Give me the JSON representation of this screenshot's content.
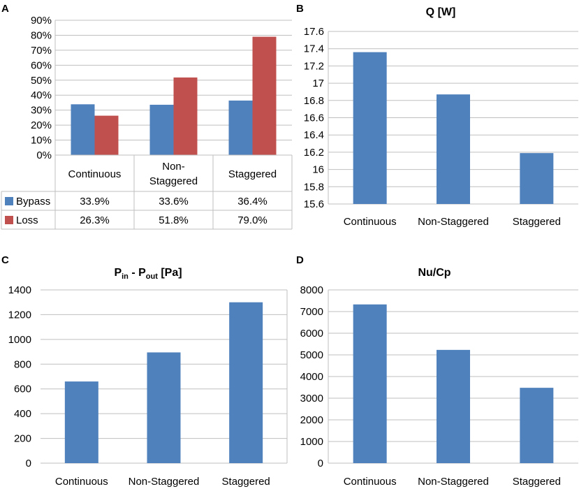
{
  "chart_data": [
    {
      "panel": "A",
      "type": "bar",
      "title": "",
      "categories": [
        "Continuous",
        "Non-\nStaggered",
        "Staggered"
      ],
      "series": [
        {
          "name": "Bypass",
          "values": [
            33.9,
            33.6,
            36.4
          ],
          "labels": [
            "33.9%",
            "33.6%",
            "36.4%"
          ],
          "color": "#4F81BD"
        },
        {
          "name": "Loss",
          "values": [
            26.3,
            51.8,
            79.0
          ],
          "labels": [
            "26.3%",
            "51.8%",
            "79.0%"
          ],
          "color": "#C0504D"
        }
      ],
      "yticks": [
        "0%",
        "10%",
        "20%",
        "30%",
        "40%",
        "50%",
        "60%",
        "70%",
        "80%",
        "90%"
      ],
      "ylim": [
        0,
        90
      ],
      "data_table": true
    },
    {
      "panel": "B",
      "type": "bar",
      "title": "Q [W]",
      "categories": [
        "Continuous",
        "Non-Staggered",
        "Staggered"
      ],
      "values": [
        17.36,
        16.87,
        16.19
      ],
      "yticks": [
        "15.6",
        "15.8",
        "16",
        "16.2",
        "16.4",
        "16.6",
        "16.8",
        "17",
        "17.2",
        "17.4",
        "17.6"
      ],
      "ylim": [
        15.6,
        17.6
      ],
      "yaxis_side": "left",
      "color": "#4F81BD"
    },
    {
      "panel": "C",
      "type": "bar",
      "title": "P_in - P_out [Pa]",
      "title_parts": {
        "p1": "P",
        "sub1": "in",
        "mid": " - P",
        "sub2": "out",
        "end": " [Pa]"
      },
      "categories": [
        "Continuous",
        "Non-Staggered",
        "Staggered"
      ],
      "values": [
        660,
        895,
        1300
      ],
      "yticks": [
        "0",
        "200",
        "400",
        "600",
        "800",
        "1000",
        "1200",
        "1400"
      ],
      "ylim": [
        0,
        1400
      ],
      "color": "#4F81BD"
    },
    {
      "panel": "D",
      "type": "bar",
      "title": "Nu/Cp",
      "categories": [
        "Continuous",
        "Non-Staggered",
        "Staggered"
      ],
      "values": [
        7330,
        5230,
        3480
      ],
      "yticks": [
        "0",
        "1000",
        "2000",
        "3000",
        "4000",
        "5000",
        "6000",
        "7000",
        "8000"
      ],
      "ylim": [
        0,
        8000
      ],
      "color": "#4F81BD"
    }
  ],
  "panel_labels": {
    "a": "A",
    "b": "B",
    "c": "C",
    "d": "D"
  },
  "colors": {
    "bar": "#4F81BD",
    "loss": "#C0504D",
    "grid": "#BFBFBF"
  }
}
